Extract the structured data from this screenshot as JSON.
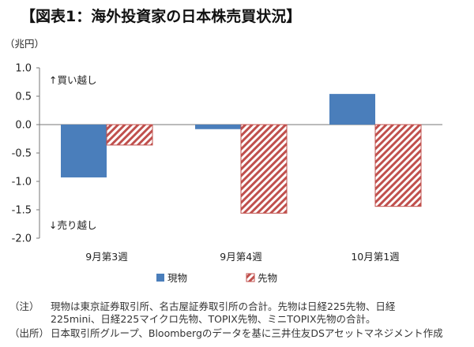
{
  "title": "【図表1：海外投資家の日本株売買状況】",
  "colors": {
    "spot": "#4a7ebb",
    "futures": "#c0504d"
  },
  "chart_data": {
    "type": "bar",
    "unit_label": "（兆円）",
    "categories": [
      "9月第3週",
      "9月第4週",
      "10月第1週"
    ],
    "series": [
      {
        "name": "現物",
        "values": [
          -0.93,
          -0.08,
          0.54
        ]
      },
      {
        "name": "先物",
        "values": [
          -0.36,
          -1.56,
          -1.44
        ]
      }
    ],
    "ylim": [
      -2.0,
      1.0
    ],
    "yticks": [
      "1.0",
      "0.5",
      "0.0",
      "-0.5",
      "-1.0",
      "-1.5",
      "-2.0"
    ],
    "annotations": {
      "buy": "↑買い越し",
      "sell": "↓売り越し"
    },
    "grid": false,
    "legend_position": "bottom"
  },
  "notes": [
    {
      "label": "（注）",
      "text": "現物は東京証券取引所、名古屋証券取引所の合計。先物は日経225先物、日経\n225mini、日経225マイクロ先物、TOPIX先物、ミニTOPIX先物の合計。"
    },
    {
      "label": "（出所）",
      "text": "日本取引所グループ、Bloombergのデータを基に三井住友DSアセットマネジメント作成"
    }
  ]
}
